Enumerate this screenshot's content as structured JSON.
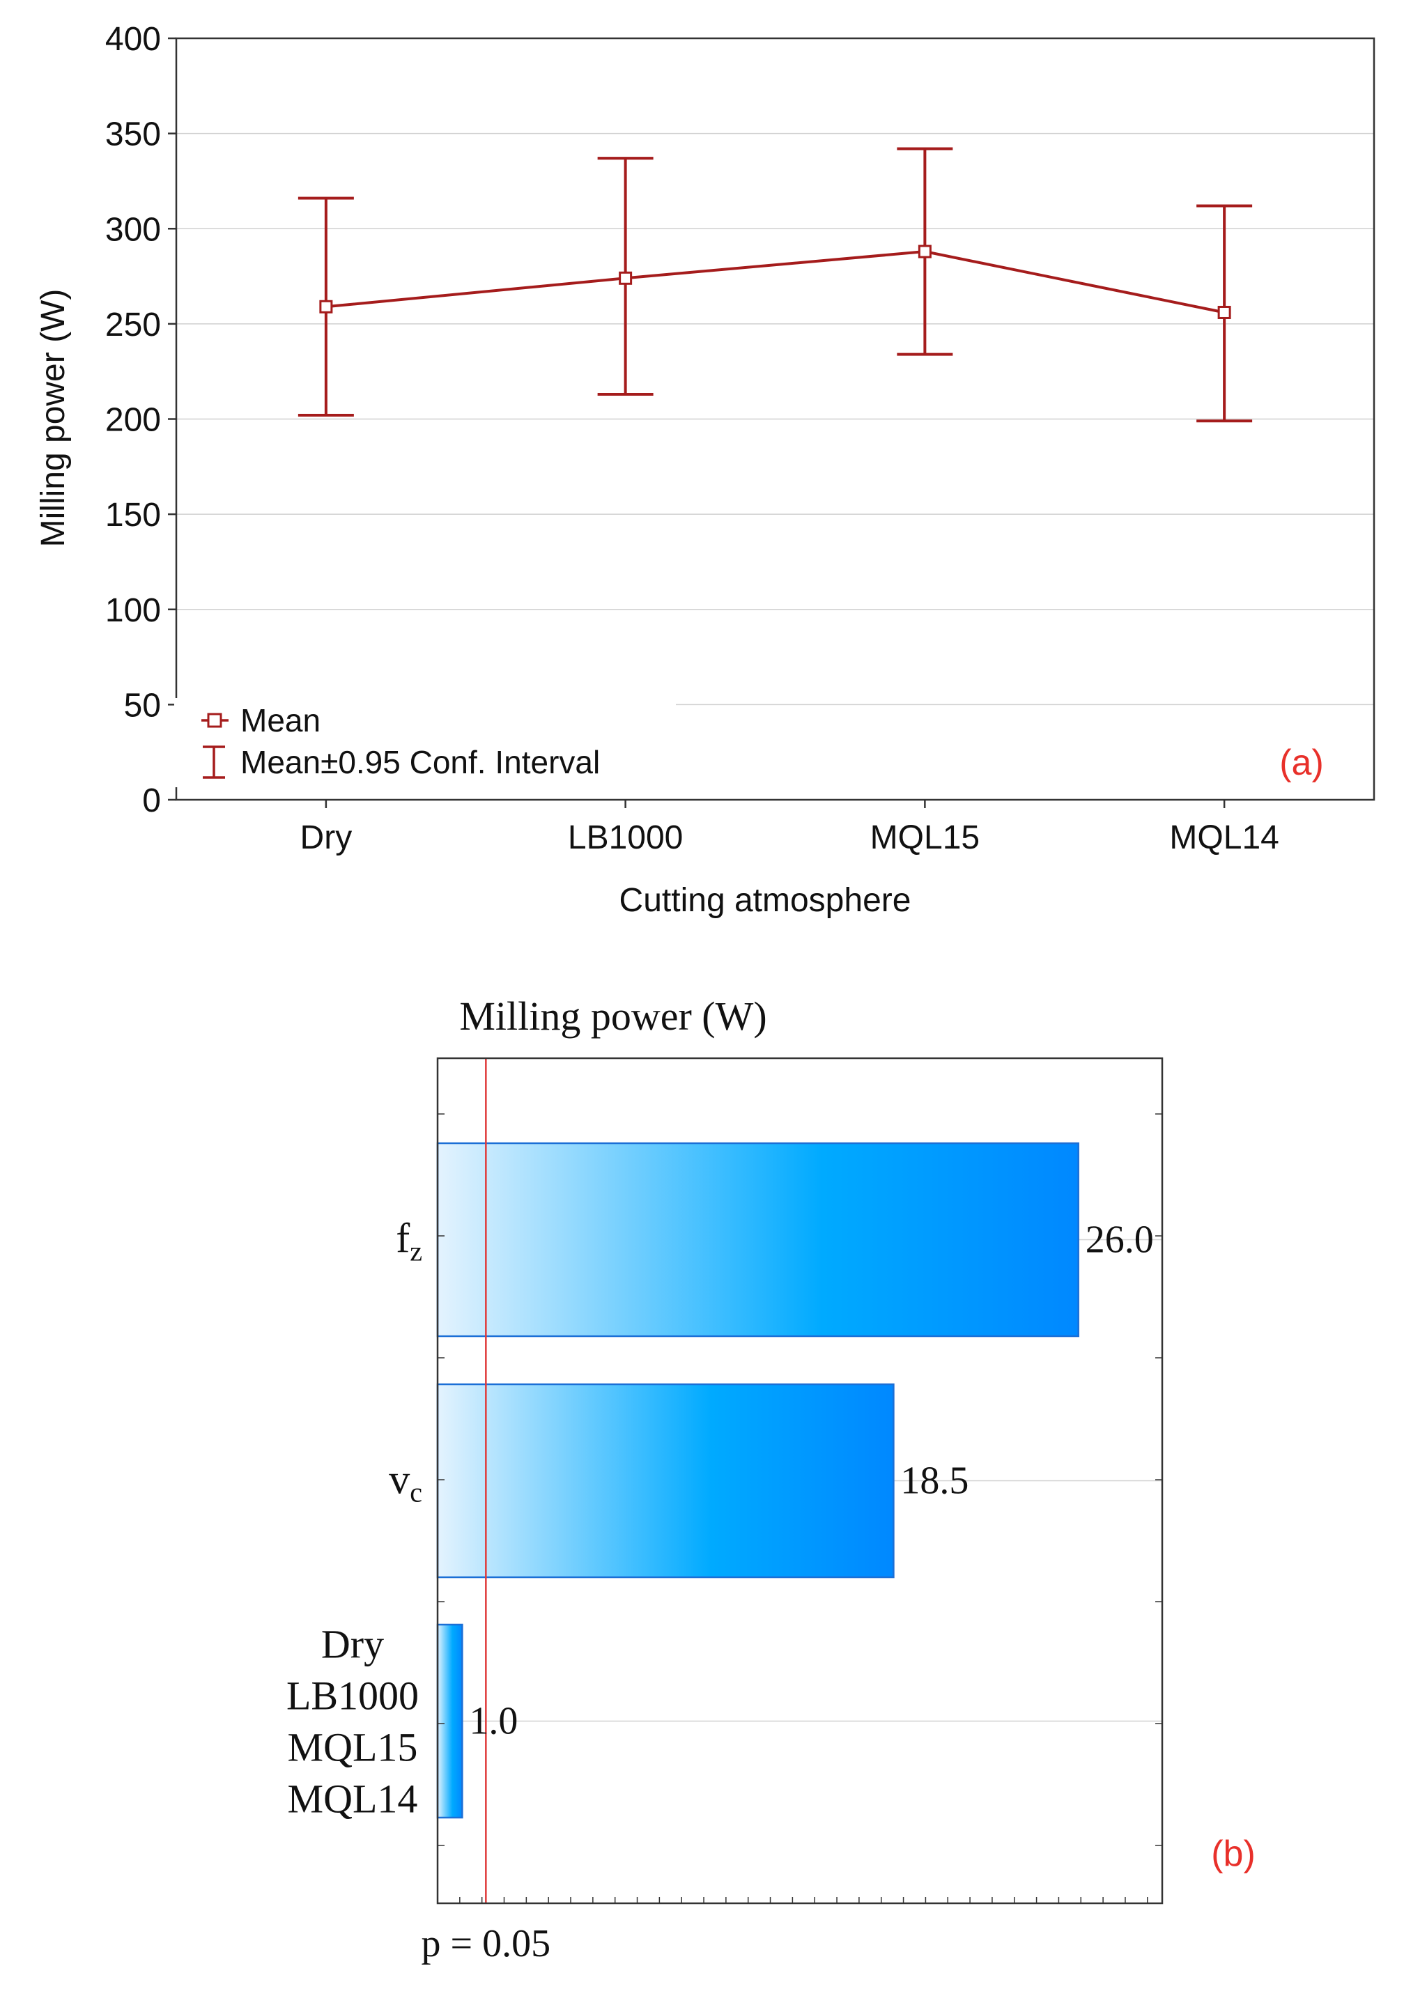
{
  "chart_data": [
    {
      "type": "line",
      "panel_label": "(a)",
      "xlabel": "Cutting atmosphere",
      "ylabel": "Milling power (W)",
      "ylim": [
        0,
        400
      ],
      "yticks": [
        "0",
        "50",
        "100",
        "150",
        "200",
        "250",
        "300",
        "350",
        "400"
      ],
      "grid": true,
      "categories": [
        "Dry",
        "LB1000",
        "MQL15",
        "MQL14"
      ],
      "series": [
        {
          "name": "Mean",
          "values": [
            259,
            274,
            288,
            256
          ],
          "ci_lower": [
            202,
            213,
            234,
            199
          ],
          "ci_upper": [
            316,
            337,
            342,
            312
          ]
        }
      ],
      "legend": {
        "placement": "bottom-left",
        "mean_label": "Mean",
        "ci_label": "Mean±0.95 Conf. Interval"
      },
      "colors": {
        "series": "#a51c1c",
        "grid": "#d0d0d0",
        "label": "#e8302a"
      }
    },
    {
      "type": "bar",
      "orientation": "horizontal",
      "panel_label": "(b)",
      "title": "Milling power (W)",
      "categories": [
        {
          "base": "f",
          "sub": "z"
        },
        {
          "base": "v",
          "sub": "c"
        },
        {
          "lines": [
            "Dry",
            "LB1000",
            "MQL15",
            "MQL14"
          ]
        }
      ],
      "values": [
        26.0,
        18.5,
        1.0
      ],
      "value_labels": [
        "26.0",
        "18.5",
        "1.0"
      ],
      "xlim": [
        0,
        29.4
      ],
      "reference_line": {
        "value": 1.96,
        "label": "p = 0.05"
      },
      "colors": {
        "bar_start": "#e4f3fe",
        "bar_mid": "#00aaff",
        "bar_end": "#0088ff",
        "bar_border": "#1b6fd6",
        "reference": "#e03a3a",
        "label": "#e8302a"
      }
    }
  ]
}
